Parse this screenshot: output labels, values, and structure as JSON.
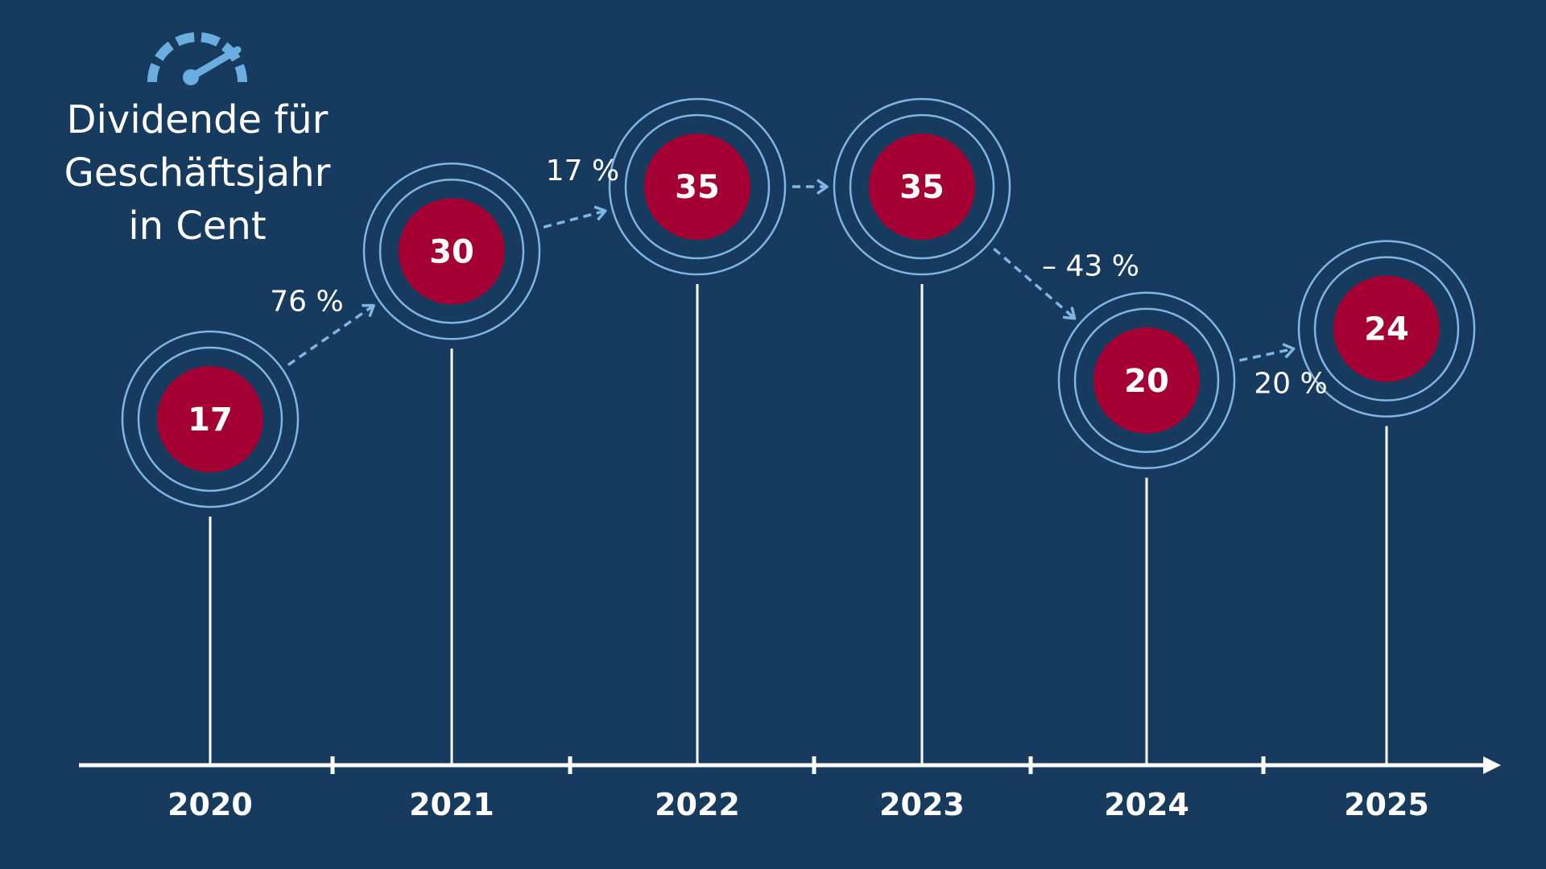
{
  "title": {
    "lines": [
      "Dividende für",
      "Geschäftsjahr",
      "in Cent"
    ],
    "icon": "speedometer-icon"
  },
  "colors": {
    "background": "#173b5e",
    "bubble": "#a50034",
    "ring": "#7fb6e3",
    "arrow": "#7fb6e3",
    "text": "#ffffff"
  },
  "chart_data": {
    "type": "line",
    "title": "Dividende für Geschäftsjahr in Cent",
    "x": [
      "2020",
      "2021",
      "2022",
      "2023",
      "2024",
      "2025"
    ],
    "values": [
      17,
      30,
      35,
      35,
      20,
      24
    ],
    "changes": [
      {
        "from": "2020",
        "to": "2021",
        "label": "76 %"
      },
      {
        "from": "2021",
        "to": "2022",
        "label": "17 %"
      },
      {
        "from": "2022",
        "to": "2023",
        "label": ""
      },
      {
        "from": "2023",
        "to": "2024",
        "label": "– 43 %"
      },
      {
        "from": "2024",
        "to": "2025",
        "label": "20 %"
      }
    ],
    "grid": false
  }
}
